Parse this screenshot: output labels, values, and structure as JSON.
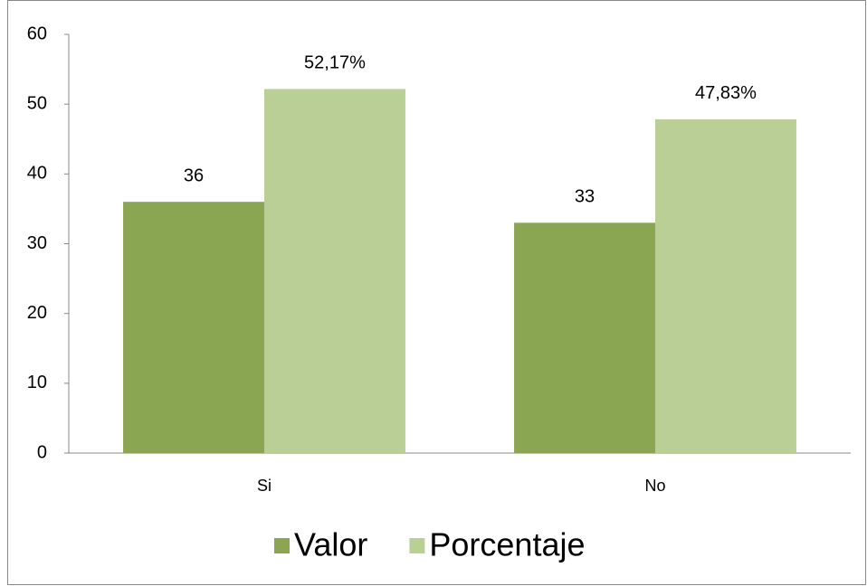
{
  "chart_data": {
    "type": "bar",
    "categories": [
      "Si",
      "No"
    ],
    "series": [
      {
        "name": "Valor",
        "color": "#8aa652",
        "values": [
          36,
          33
        ]
      },
      {
        "name": "Porcentaje",
        "color": "#b9cf96",
        "values": [
          52.17,
          47.83
        ],
        "value_labels": [
          "52,17%",
          "47,83%"
        ]
      }
    ],
    "ylim": [
      0,
      60
    ],
    "yticks": [
      0,
      10,
      20,
      30,
      40,
      50,
      60
    ],
    "grid": false,
    "legend": "bottom"
  }
}
